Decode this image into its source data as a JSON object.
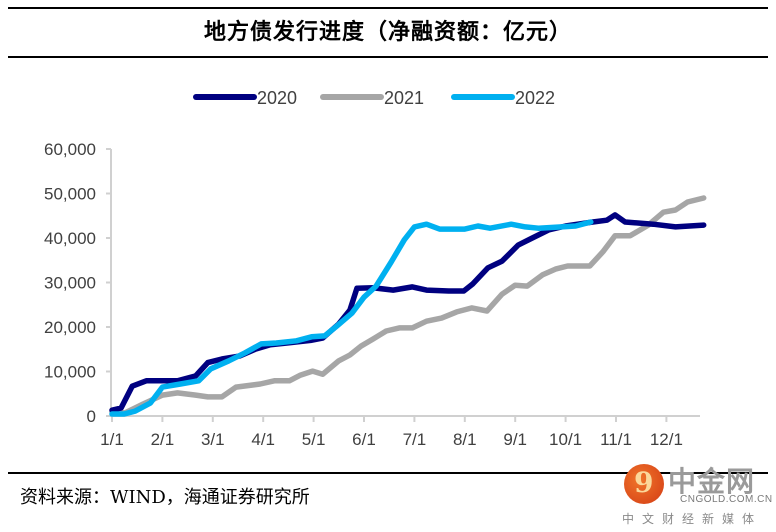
{
  "page": {
    "title": "地方债发行进度（净融资额：亿元）",
    "source": "资料来源：WIND，海通证券研究所",
    "watermark": {
      "brand": "中金网",
      "url": "CNGOLD.COM.CN",
      "tagline": "中文财经新媒体",
      "glyph": "9"
    }
  },
  "chart_data": {
    "type": "line",
    "title": "地方债发行进度（净融资额：亿元）",
    "xlabel": "",
    "ylabel": "",
    "x_unit": "month index (0 = 1/1, 12 = year end)",
    "x_range": [
      0,
      11.8
    ],
    "ylim": [
      0,
      60000
    ],
    "y_ticks": [
      0,
      10000,
      20000,
      30000,
      40000,
      50000,
      60000
    ],
    "y_tick_labels": [
      "0",
      "10,000",
      "20,000",
      "30,000",
      "40,000",
      "50,000",
      "60,000"
    ],
    "x_ticks": [
      0,
      1,
      2,
      3,
      4,
      5,
      6,
      7,
      8,
      9,
      10,
      11
    ],
    "x_tick_labels": [
      "1/1",
      "2/1",
      "3/1",
      "4/1",
      "5/1",
      "6/1",
      "7/1",
      "8/1",
      "9/1",
      "10/1",
      "11/1",
      "12/1"
    ],
    "grid": false,
    "legend_position": "top-center",
    "series": [
      {
        "name": "2020",
        "color": "#000080",
        "x": [
          0,
          0.18,
          0.4,
          0.68,
          1.0,
          1.3,
          1.66,
          1.9,
          2.18,
          2.54,
          2.84,
          3.14,
          3.54,
          3.94,
          4.18,
          4.5,
          4.72,
          4.86,
          5.18,
          5.58,
          5.96,
          6.24,
          6.68,
          6.98,
          7.16,
          7.46,
          7.74,
          8.06,
          8.34,
          8.66,
          9.0,
          9.54,
          9.82,
          9.98,
          10.18,
          10.74,
          11.18,
          11.74
        ],
        "values": [
          1300,
          1800,
          6700,
          7900,
          7900,
          7900,
          9000,
          12000,
          12800,
          13500,
          15000,
          16000,
          16500,
          17000,
          17500,
          20700,
          23800,
          28700,
          28800,
          28300,
          29000,
          28300,
          28100,
          28100,
          29700,
          33300,
          34800,
          38400,
          40000,
          41800,
          42700,
          43600,
          44000,
          45200,
          43600,
          43100,
          42500,
          42900
        ]
      },
      {
        "name": "2021",
        "color": "#A6A6A6",
        "x": [
          0,
          0.26,
          0.62,
          1.0,
          1.3,
          1.66,
          1.9,
          2.18,
          2.46,
          2.94,
          3.22,
          3.52,
          3.74,
          3.98,
          4.18,
          4.5,
          4.72,
          4.94,
          5.18,
          5.44,
          5.7,
          5.96,
          6.24,
          6.54,
          6.84,
          7.14,
          7.44,
          7.74,
          8.0,
          8.24,
          8.54,
          8.8,
          9.04,
          9.48,
          9.74,
          9.98,
          10.28,
          10.64,
          10.94,
          11.18,
          11.42,
          11.74
        ],
        "values": [
          900,
          700,
          2700,
          4700,
          5200,
          4700,
          4300,
          4300,
          6500,
          7200,
          7900,
          7900,
          9200,
          10100,
          9400,
          12400,
          13700,
          15700,
          17300,
          19100,
          19800,
          19800,
          21300,
          22000,
          23400,
          24300,
          23600,
          27400,
          29400,
          29200,
          31700,
          33000,
          33700,
          33700,
          36900,
          40500,
          40500,
          42900,
          45800,
          46300,
          48100,
          49000
        ]
      },
      {
        "name": "2022",
        "color": "#00B0F0",
        "x": [
          0,
          0.24,
          0.46,
          0.76,
          1.0,
          1.36,
          1.72,
          1.96,
          2.32,
          2.64,
          2.96,
          3.26,
          3.66,
          3.96,
          4.22,
          4.48,
          4.76,
          5.0,
          5.24,
          5.54,
          5.8,
          6.0,
          6.24,
          6.5,
          7.0,
          7.26,
          7.5,
          7.92,
          8.2,
          8.46,
          8.92,
          9.2,
          9.5
        ],
        "values": [
          450,
          450,
          1100,
          2900,
          6500,
          7200,
          7900,
          10600,
          12400,
          14200,
          16200,
          16400,
          16900,
          17800,
          18000,
          20400,
          23100,
          26700,
          29200,
          34600,
          39600,
          42500,
          43100,
          42000,
          42000,
          42700,
          42200,
          43100,
          42500,
          42200,
          42500,
          42700,
          43600
        ]
      }
    ]
  }
}
